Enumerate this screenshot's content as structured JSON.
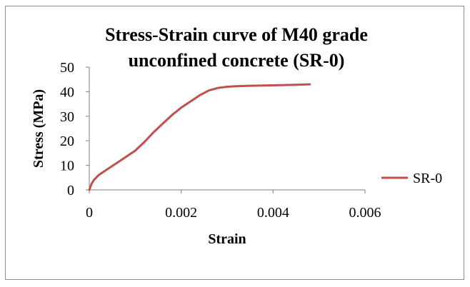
{
  "chart_data": {
    "type": "line",
    "title": "Stress-Strain curve of M40 grade unconfined concrete (SR-0)",
    "title_lines": [
      "Stress-Strain curve of M40 grade",
      "unconfined concrete (SR-0)"
    ],
    "xlabel": "Strain",
    "ylabel": "Stress (MPa)",
    "xlim": [
      0,
      0.006
    ],
    "ylim": [
      0,
      50
    ],
    "x_ticks": [
      "0",
      "0.002",
      "0.004",
      "0.006"
    ],
    "y_ticks": [
      "0",
      "10",
      "20",
      "30",
      "40",
      "50"
    ],
    "grid": false,
    "legend": "right",
    "series": [
      {
        "name": "SR-0",
        "color": "#c0504d",
        "x": [
          0,
          5e-05,
          0.0001,
          0.0002,
          0.0004,
          0.0006,
          0.0008,
          0.001,
          0.0012,
          0.0014,
          0.0016,
          0.0018,
          0.002,
          0.0022,
          0.0024,
          0.0026,
          0.0028,
          0.003,
          0.0032,
          0.0035,
          0.004,
          0.0045,
          0.0048
        ],
        "y": [
          0,
          2.5,
          4,
          6,
          8.5,
          11,
          13.5,
          16,
          19.5,
          23.5,
          27,
          30.5,
          33.5,
          36,
          38.5,
          40.5,
          41.5,
          42,
          42.2,
          42.4,
          42.6,
          42.8,
          43
        ]
      }
    ]
  }
}
